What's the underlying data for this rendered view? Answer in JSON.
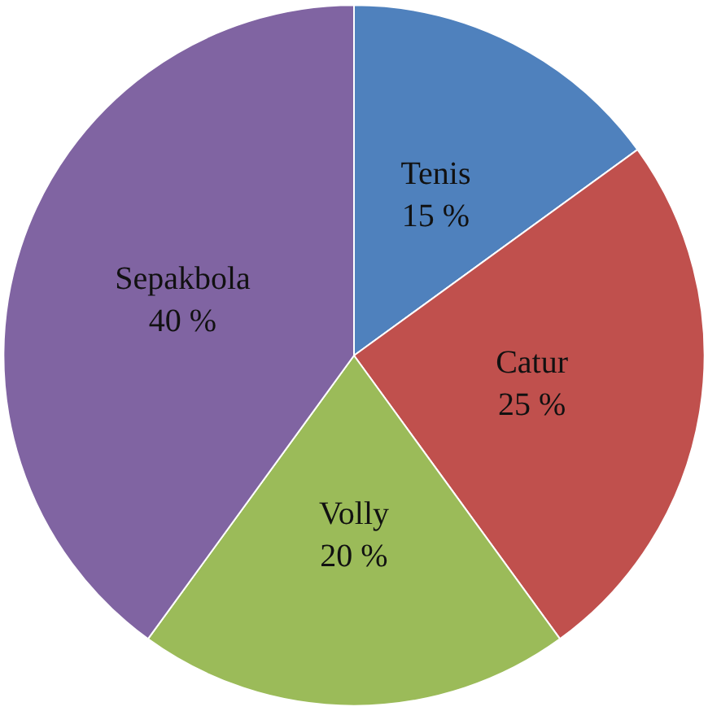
{
  "chart_data": {
    "type": "pie",
    "categories": [
      "Tenis",
      "Catur",
      "Volly",
      "Sepakbola"
    ],
    "values": [
      15,
      25,
      20,
      40
    ],
    "value_labels": [
      "15 %",
      "25 %",
      "20 %",
      "40 %"
    ],
    "colors": [
      "#4f81bd",
      "#c0504d",
      "#9bbb59",
      "#8064a2"
    ]
  }
}
